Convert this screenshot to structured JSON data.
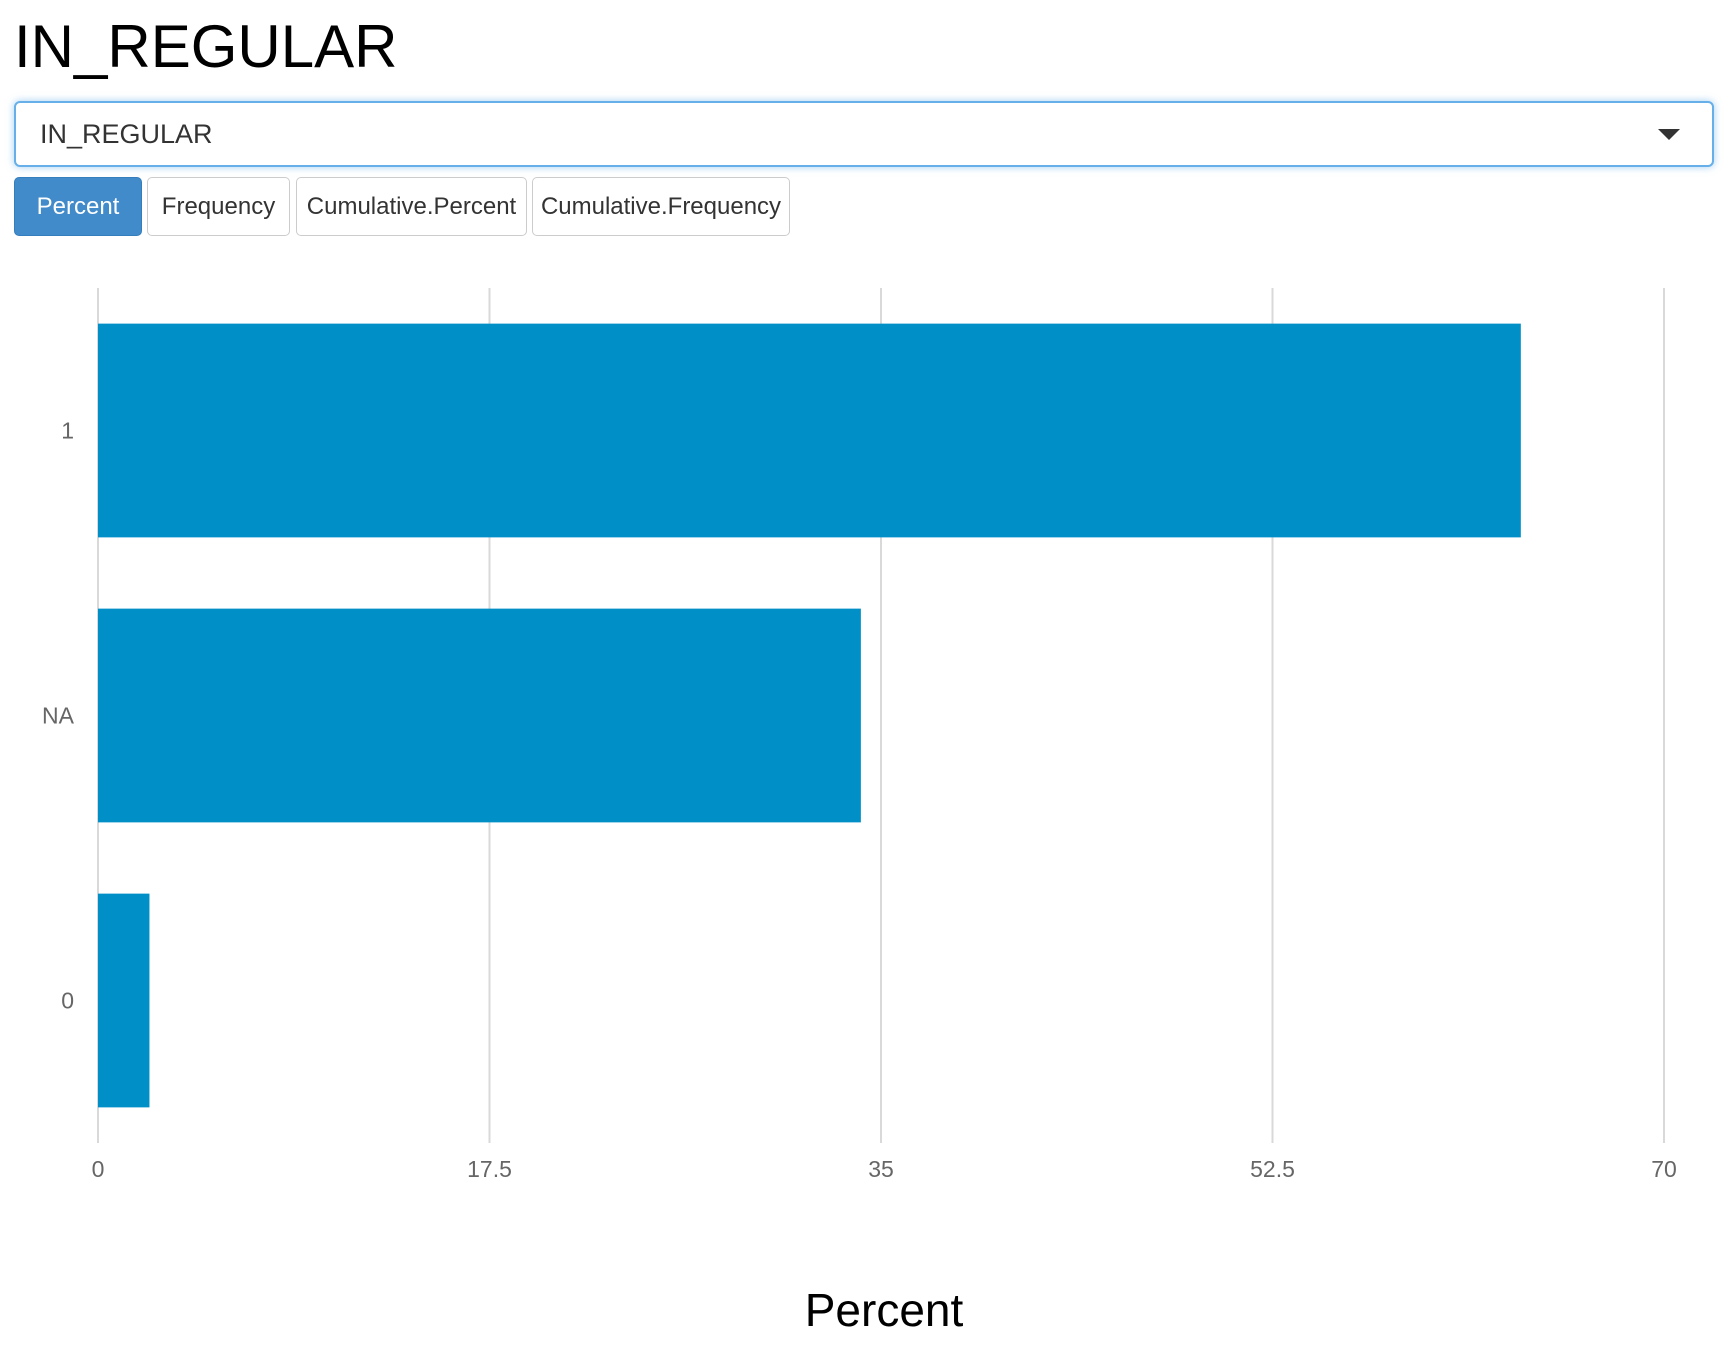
{
  "header": {
    "title": "IN_REGULAR"
  },
  "variable_select": {
    "selected": "IN_REGULAR"
  },
  "buttons": [
    {
      "label": "Percent",
      "active": true
    },
    {
      "label": "Frequency",
      "active": false
    },
    {
      "label": "Cumulative.Percent",
      "active": false
    },
    {
      "label": "Cumulative.Frequency",
      "active": false
    }
  ],
  "colors": {
    "bar": "#008fc7",
    "active_button": "#428bca",
    "grid": "#d9d9d9"
  },
  "chart_data": {
    "type": "bar",
    "orientation": "horizontal",
    "categories": [
      "1",
      "NA",
      "0"
    ],
    "values": [
      63.6,
      34.1,
      2.3
    ],
    "xlabel": "Percent",
    "xlim": [
      0,
      70
    ],
    "xticks": [
      "0",
      "17.5",
      "35",
      "52.5",
      "70"
    ],
    "grid": true
  }
}
